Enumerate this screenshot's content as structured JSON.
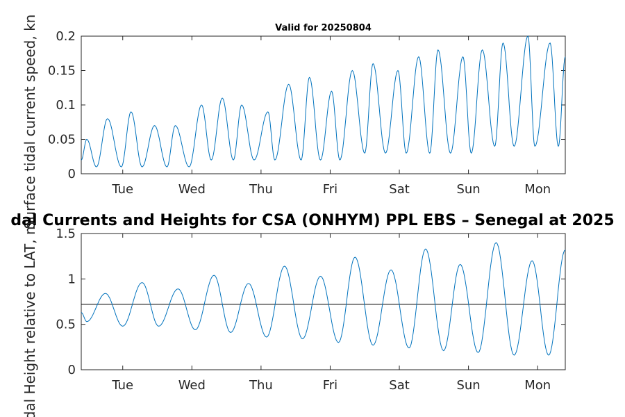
{
  "figure_title": "dal Currents and Heights for CSA (ONHYM) PPL EBS  – Senegal at 2025",
  "chart_data": [
    {
      "type": "line",
      "title": "Valid for 20250804",
      "ylabel": "Surface tidal current speed, kn",
      "xlabel": "",
      "xlim": [
        0,
        7
      ],
      "ylim": [
        0,
        0.2
      ],
      "yticks": [
        0,
        0.05,
        0.1,
        0.15,
        0.2
      ],
      "ytick_labels": [
        "0",
        "0.05",
        "0.1",
        "0.15",
        "0.2"
      ],
      "xticks": [
        0.6,
        1.6,
        2.6,
        3.6,
        4.6,
        5.6,
        6.6
      ],
      "xtick_labels": [
        "Tue",
        "Wed",
        "Thu",
        "Fri",
        "Sat",
        "Sun",
        "Mon"
      ],
      "grid": false,
      "color": "#0072bd",
      "series": [
        {
          "x": [
            0.0,
            0.08,
            0.22,
            0.38,
            0.58,
            0.72,
            0.88,
            1.06,
            1.24,
            1.36,
            1.56,
            1.74,
            1.88,
            2.04,
            2.2,
            2.32,
            2.5,
            2.7,
            2.8,
            3.0,
            3.18,
            3.3,
            3.46,
            3.62,
            3.74,
            3.92,
            4.1,
            4.22,
            4.4,
            4.58,
            4.7,
            4.88,
            5.04,
            5.16,
            5.34,
            5.52,
            5.64,
            5.8,
            5.98,
            6.1,
            6.26,
            6.46,
            6.56,
            6.78,
            6.9,
            7.0
          ],
          "y": [
            0.02,
            0.05,
            0.01,
            0.08,
            0.01,
            0.09,
            0.01,
            0.07,
            0.01,
            0.07,
            0.01,
            0.1,
            0.02,
            0.11,
            0.02,
            0.1,
            0.02,
            0.09,
            0.02,
            0.13,
            0.02,
            0.14,
            0.02,
            0.12,
            0.02,
            0.15,
            0.03,
            0.16,
            0.03,
            0.15,
            0.03,
            0.17,
            0.03,
            0.18,
            0.03,
            0.17,
            0.03,
            0.18,
            0.04,
            0.19,
            0.04,
            0.2,
            0.04,
            0.19,
            0.04,
            0.17
          ]
        }
      ]
    },
    {
      "type": "line",
      "title": "",
      "ylabel": "Tidal Height relative to LAT, m",
      "xlabel": "",
      "xlim": [
        0,
        7
      ],
      "ylim": [
        0,
        1.5
      ],
      "yticks": [
        0,
        0.5,
        1,
        1.5
      ],
      "ytick_labels": [
        "0",
        "0.5",
        "1",
        "1.5"
      ],
      "xticks": [
        0.6,
        1.6,
        2.6,
        3.6,
        4.6,
        5.6,
        6.6
      ],
      "xtick_labels": [
        "Tue",
        "Wed",
        "Thu",
        "Fri",
        "Sat",
        "Sun",
        "Mon"
      ],
      "grid": false,
      "color": "#0072bd",
      "reference_line": {
        "y": 0.72,
        "color": "#000000"
      },
      "series": [
        {
          "x": [
            0.0,
            0.08,
            0.35,
            0.6,
            0.88,
            1.12,
            1.4,
            1.65,
            1.92,
            2.16,
            2.42,
            2.68,
            2.94,
            3.2,
            3.46,
            3.72,
            3.96,
            4.22,
            4.48,
            4.74,
            4.98,
            5.24,
            5.48,
            5.74,
            6.0,
            6.26,
            6.52,
            6.76,
            7.0
          ],
          "y": [
            0.63,
            0.53,
            0.84,
            0.48,
            0.96,
            0.48,
            0.89,
            0.44,
            1.04,
            0.41,
            0.95,
            0.36,
            1.14,
            0.34,
            1.03,
            0.3,
            1.24,
            0.27,
            1.1,
            0.24,
            1.33,
            0.21,
            1.16,
            0.19,
            1.4,
            0.16,
            1.2,
            0.16,
            1.32
          ]
        }
      ]
    }
  ]
}
